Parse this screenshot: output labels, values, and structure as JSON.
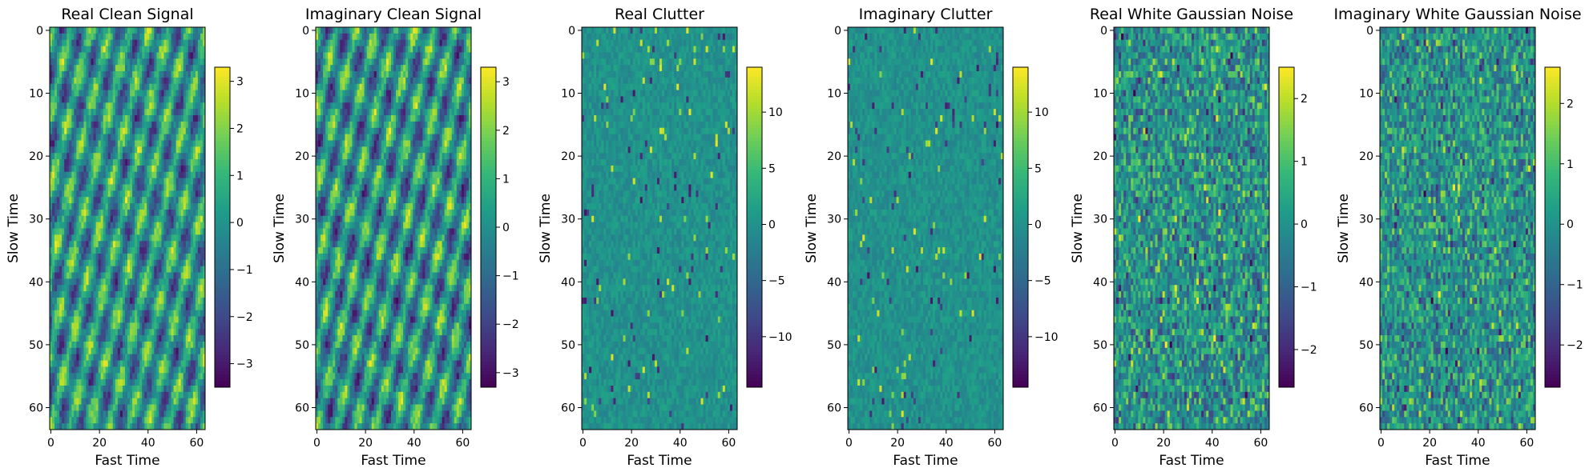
{
  "chart_data": [
    {
      "type": "heatmap",
      "title": "Real Clean Signal",
      "xlabel": "Fast Time",
      "ylabel": "Slow Time",
      "pattern": "clean",
      "grid": false,
      "shape": [
        64,
        64
      ],
      "xlim": [
        -0.5,
        63.5
      ],
      "ylim": [
        63.5,
        -0.5
      ],
      "x_ticks": [
        0,
        20,
        40,
        60
      ],
      "y_ticks": [
        0,
        10,
        20,
        30,
        40,
        50,
        60
      ],
      "colormap": "viridis",
      "colorbar": {
        "vmin": -3.5,
        "vmax": 3.3,
        "ticks": [
          -3,
          -2,
          -1,
          0,
          1,
          2,
          3
        ],
        "tick_labels": [
          "−3",
          "−2",
          "−1",
          "0",
          "1",
          "2",
          "3"
        ]
      }
    },
    {
      "type": "heatmap",
      "title": "Imaginary Clean Signal",
      "xlabel": "Fast Time",
      "ylabel": "Slow Time",
      "pattern": "clean",
      "grid": false,
      "shape": [
        64,
        64
      ],
      "xlim": [
        -0.5,
        63.5
      ],
      "ylim": [
        63.5,
        -0.5
      ],
      "x_ticks": [
        0,
        20,
        40,
        60
      ],
      "y_ticks": [
        0,
        10,
        20,
        30,
        40,
        50,
        60
      ],
      "colormap": "viridis",
      "colorbar": {
        "vmin": -3.3,
        "vmax": 3.3,
        "ticks": [
          -3,
          -2,
          -1,
          0,
          1,
          2,
          3
        ],
        "tick_labels": [
          "−3",
          "−2",
          "−1",
          "0",
          "1",
          "2",
          "3"
        ]
      }
    },
    {
      "type": "heatmap",
      "title": "Real Clutter",
      "xlabel": "Fast Time",
      "ylabel": "Slow Time",
      "pattern": "clutter",
      "grid": false,
      "shape": [
        64,
        64
      ],
      "xlim": [
        -0.5,
        63.5
      ],
      "ylim": [
        63.5,
        -0.5
      ],
      "x_ticks": [
        0,
        20,
        40,
        60
      ],
      "y_ticks": [
        0,
        10,
        20,
        30,
        40,
        50,
        60
      ],
      "colormap": "viridis",
      "colorbar": {
        "vmin": -14.5,
        "vmax": 14,
        "ticks": [
          -10,
          -5,
          0,
          5,
          10
        ],
        "tick_labels": [
          "−10",
          "−5",
          "0",
          "5",
          "10"
        ]
      }
    },
    {
      "type": "heatmap",
      "title": "Imaginary Clutter",
      "xlabel": "Fast Time",
      "ylabel": "Slow Time",
      "pattern": "clutter",
      "grid": false,
      "shape": [
        64,
        64
      ],
      "xlim": [
        -0.5,
        63.5
      ],
      "ylim": [
        63.5,
        -0.5
      ],
      "x_ticks": [
        0,
        20,
        40,
        60
      ],
      "y_ticks": [
        0,
        10,
        20,
        30,
        40,
        50,
        60
      ],
      "colormap": "viridis",
      "colorbar": {
        "vmin": -14.5,
        "vmax": 14,
        "ticks": [
          -10,
          -5,
          0,
          5,
          10
        ],
        "tick_labels": [
          "−10",
          "−5",
          "0",
          "5",
          "10"
        ]
      }
    },
    {
      "type": "heatmap",
      "title": "Real White Gaussian Noise",
      "xlabel": "Fast Time",
      "ylabel": "Slow Time",
      "pattern": "noise",
      "grid": false,
      "shape": [
        64,
        64
      ],
      "xlim": [
        -0.5,
        63.5
      ],
      "ylim": [
        63.5,
        -0.5
      ],
      "x_ticks": [
        0,
        20,
        40,
        60
      ],
      "y_ticks": [
        0,
        10,
        20,
        30,
        40,
        50,
        60
      ],
      "colormap": "viridis",
      "colorbar": {
        "vmin": -2.6,
        "vmax": 2.5,
        "ticks": [
          -2,
          -1,
          0,
          1,
          2
        ],
        "tick_labels": [
          "−2",
          "−1",
          "0",
          "1",
          "2"
        ]
      }
    },
    {
      "type": "heatmap",
      "title": "Imaginary White Gaussian Noise",
      "xlabel": "Fast Time",
      "ylabel": "Slow Time",
      "pattern": "noise",
      "grid": false,
      "shape": [
        64,
        64
      ],
      "xlim": [
        -0.5,
        63.5
      ],
      "ylim": [
        63.5,
        -0.5
      ],
      "x_ticks": [
        0,
        20,
        40,
        60
      ],
      "y_ticks": [
        0,
        10,
        20,
        30,
        40,
        50,
        60
      ],
      "colormap": "viridis",
      "colorbar": {
        "vmin": -2.7,
        "vmax": 2.6,
        "ticks": [
          -2,
          -1,
          0,
          1,
          2
        ],
        "tick_labels": [
          "−2",
          "−1",
          "0",
          "1",
          "2"
        ]
      }
    }
  ]
}
